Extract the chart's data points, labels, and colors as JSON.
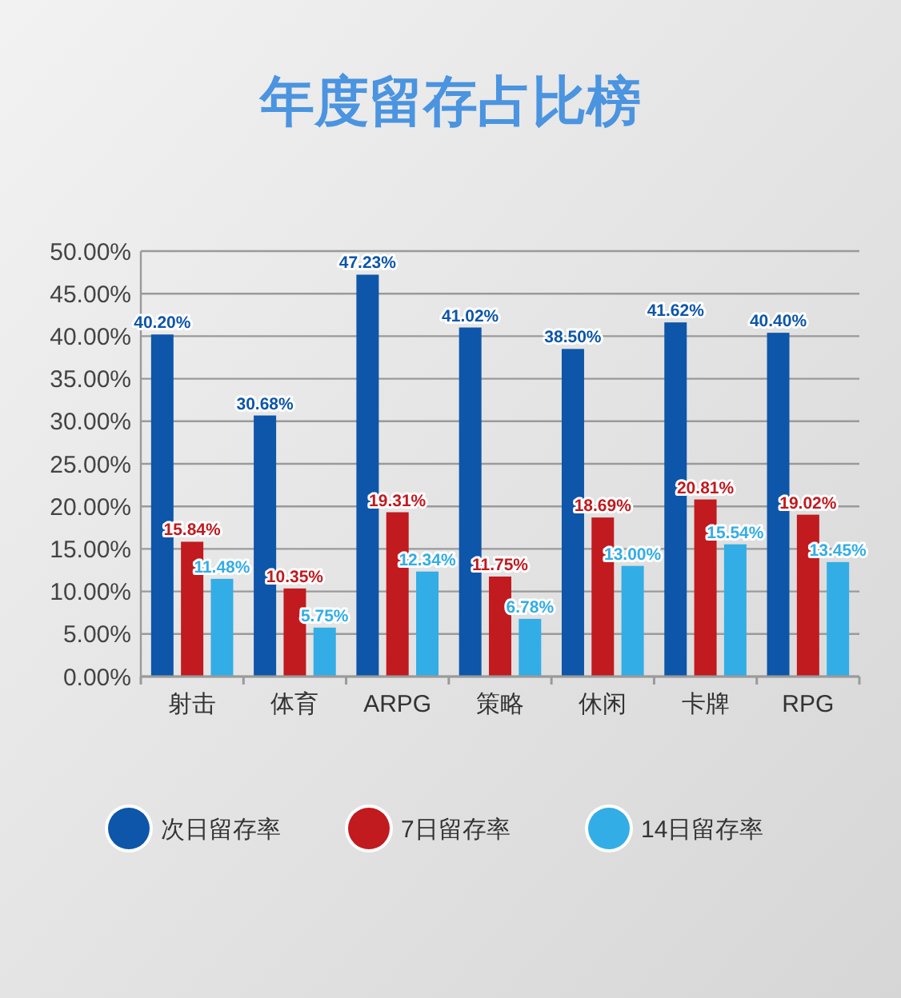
{
  "chart_data": {
    "type": "bar",
    "title": "年度留存占比榜",
    "categories": [
      "射击",
      "体育",
      "ARPG",
      "策略",
      "休闲",
      "卡牌",
      "RPG"
    ],
    "series": [
      {
        "name": "次日留存率",
        "color": "#0d56aa",
        "values": [
          40.2,
          30.68,
          47.23,
          41.02,
          38.5,
          41.62,
          40.4
        ],
        "value_labels": [
          "40.20%",
          "30.68%",
          "47.23%",
          "41.02%",
          "38.50%",
          "41.62%",
          "40.40%"
        ]
      },
      {
        "name": "7日留存率",
        "color": "#c11a1f",
        "values": [
          15.84,
          10.35,
          19.31,
          11.75,
          18.69,
          20.81,
          19.02
        ],
        "value_labels": [
          "15.84%",
          "10.35%",
          "19.31%",
          "11.75%",
          "18.69%",
          "20.81%",
          "19.02%"
        ]
      },
      {
        "name": "14日留存率",
        "color": "#33ade6",
        "values": [
          11.48,
          5.75,
          12.34,
          6.78,
          13.0,
          15.54,
          13.45
        ],
        "value_labels": [
          "11.48%",
          "5.75%",
          "12.34%",
          "6.78%",
          "13.00%",
          "15.54%",
          "13.45%"
        ]
      }
    ],
    "ylim": [
      0,
      50
    ],
    "yticks": [
      {
        "value": 0,
        "label": "0.00%"
      },
      {
        "value": 5,
        "label": "5.00%"
      },
      {
        "value": 10,
        "label": "10.00%"
      },
      {
        "value": 15,
        "label": "15.00%"
      },
      {
        "value": 20,
        "label": "20.00%"
      },
      {
        "value": 25,
        "label": "25.00%"
      },
      {
        "value": 30,
        "label": "30.00%"
      },
      {
        "value": 35,
        "label": "35.00%"
      },
      {
        "value": 40,
        "label": "40.00%"
      },
      {
        "value": 45,
        "label": "45.00%"
      },
      {
        "value": 50,
        "label": "50.00%"
      }
    ],
    "grid": "y",
    "legend": "bottom"
  }
}
